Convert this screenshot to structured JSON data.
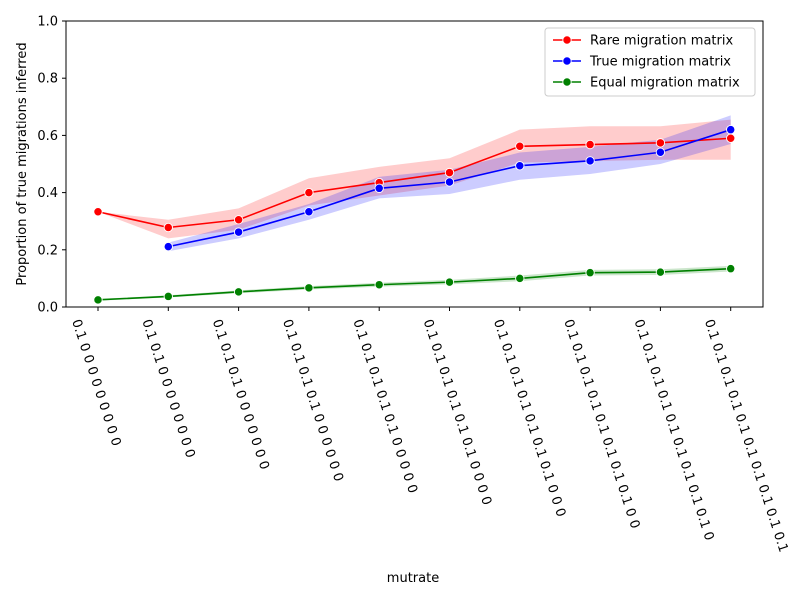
{
  "chart_data": {
    "type": "line",
    "xlabel": "mutrate",
    "ylabel": "Proportion of true migrations inferred",
    "ylim": [
      0,
      1
    ],
    "yticks": [
      "0.0",
      "0.2",
      "0.4",
      "0.6",
      "0.8",
      "1.0"
    ],
    "categories": [
      "0.1 0 0 0 0 0 0 0 0 0",
      "0.1 0.1 0 0 0 0 0 0 0 0",
      "0.1 0.1 0.1 0 0 0 0 0 0 0",
      "0.1 0.1 0.1 0.1 0 0 0 0 0 0",
      "0.1 0.1 0.1 0.1 0.1 0 0 0 0 0",
      "0.1 0.1 0.1 0.1 0.1 0.1 0 0 0 0",
      "0.1 0.1 0.1 0.1 0.1 0.1 0.1 0 0 0",
      "0.1 0.1 0.1 0.1 0.1 0.1 0.1 0.1 0 0",
      "0.1 0.1 0.1 0.1 0.1 0.1 0.1 0.1 0.1 0",
      "0.1 0.1 0.1 0.1 0.1 0.1 0.1 0.1 0.1 0.1"
    ],
    "legend_position": "upper right",
    "series": [
      {
        "name": "Rare migration matrix",
        "color": "#ff0000",
        "values": [
          0.333,
          0.278,
          0.305,
          0.4,
          0.435,
          0.47,
          0.562,
          0.568,
          0.574,
          0.59
        ],
        "lower": [
          0.333,
          0.24,
          0.27,
          0.355,
          0.39,
          0.425,
          0.505,
          0.51,
          0.515,
          0.515
        ],
        "upper": [
          0.333,
          0.305,
          0.345,
          0.45,
          0.49,
          0.52,
          0.62,
          0.632,
          0.632,
          0.655
        ]
      },
      {
        "name": "True migration matrix",
        "color": "#0000ff",
        "values": [
          null,
          0.211,
          0.262,
          0.333,
          0.415,
          0.437,
          0.494,
          0.511,
          0.541,
          0.62
        ],
        "lower": [
          null,
          0.195,
          0.24,
          0.305,
          0.38,
          0.395,
          0.445,
          0.465,
          0.5,
          0.57
        ],
        "upper": [
          null,
          0.225,
          0.29,
          0.36,
          0.455,
          0.48,
          0.54,
          0.56,
          0.585,
          0.67
        ]
      },
      {
        "name": "Equal migration matrix",
        "color": "#008000",
        "values": [
          0.025,
          0.037,
          0.053,
          0.067,
          0.078,
          0.087,
          0.1,
          0.12,
          0.122,
          0.134
        ],
        "lower": [
          0.022,
          0.033,
          0.048,
          0.061,
          0.071,
          0.079,
          0.09,
          0.11,
          0.112,
          0.124
        ],
        "upper": [
          0.028,
          0.041,
          0.058,
          0.073,
          0.085,
          0.095,
          0.11,
          0.13,
          0.132,
          0.144
        ]
      }
    ]
  }
}
